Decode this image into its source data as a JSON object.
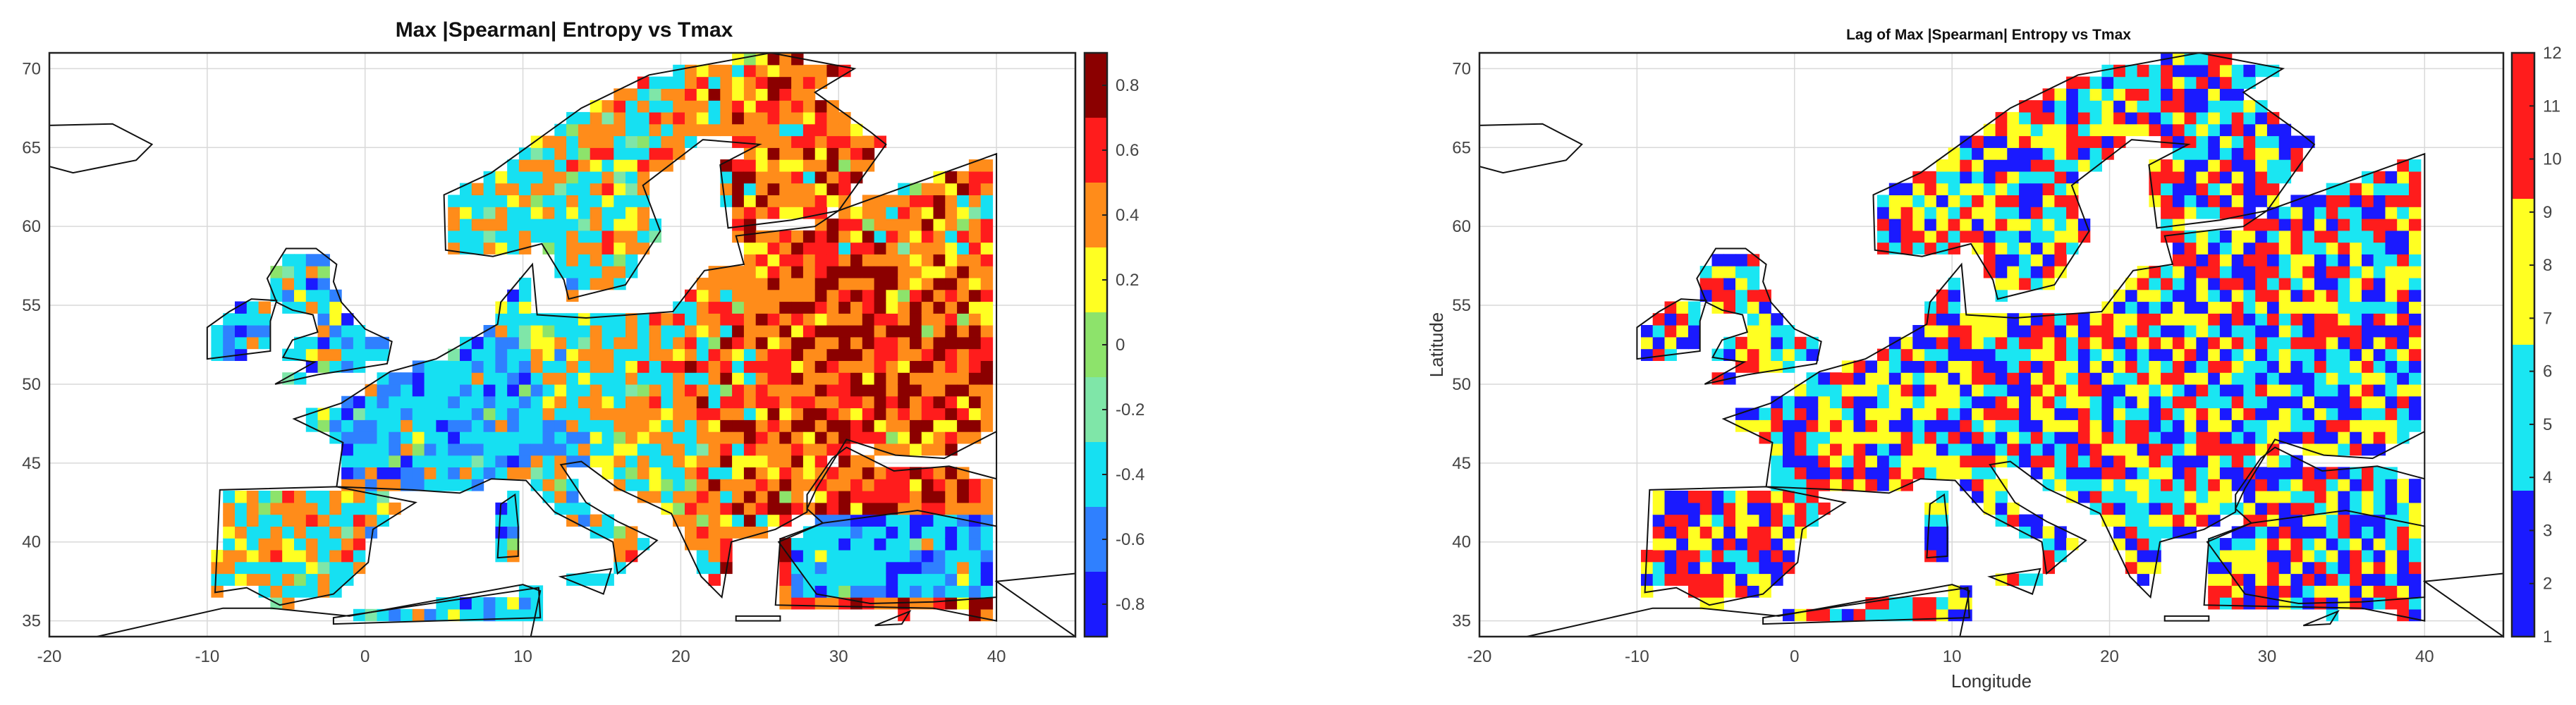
{
  "chart_data": [
    {
      "type": "heatmap",
      "title": "Max |Spearman| Entropy vs Tmax",
      "xlabel": "",
      "ylabel": "",
      "xlim": [
        -20,
        45
      ],
      "ylim": [
        34,
        71
      ],
      "xticks": [
        "-20",
        "-10",
        "0",
        "10",
        "20",
        "30",
        "40"
      ],
      "yticks": [
        "35",
        "40",
        "45",
        "50",
        "55",
        "60",
        "65",
        "70"
      ],
      "grid": true,
      "colorbar": {
        "position": "right",
        "range": [
          -0.9,
          0.9
        ],
        "ticks": [
          "-0.8",
          "-0.6",
          "-0.4",
          "-0.2",
          "0",
          "0.2",
          "0.4",
          "0.6",
          "0.8"
        ],
        "colors": [
          "#1a1aff",
          "#2f80ff",
          "#16e0f2",
          "#7fe6a8",
          "#8de36b",
          "#ffff22",
          "#ff8c1a",
          "#ff1c1c",
          "#8b0000"
        ]
      },
      "dominant_values": {
        "western_europe": [
          -0.4,
          -0.2
        ],
        "eastern_europe": [
          0.4,
          0.6
        ],
        "scandinavia": [
          0.2,
          0.4
        ],
        "iberia": [
          -0.6,
          0.6
        ]
      }
    },
    {
      "type": "heatmap",
      "title": "Lag of Max |Spearman| Entropy vs Tmax",
      "xlabel": "Longitude",
      "ylabel": "Latitude",
      "xlim": [
        -20,
        45
      ],
      "ylim": [
        34,
        71
      ],
      "xticks": [
        "-20",
        "-10",
        "0",
        "10",
        "20",
        "30",
        "40"
      ],
      "yticks": [
        "35",
        "40",
        "45",
        "50",
        "55",
        "60",
        "65",
        "70"
      ],
      "grid": true,
      "colorbar": {
        "position": "right",
        "range": [
          1,
          12
        ],
        "ticks": [
          "1",
          "2",
          "3",
          "4",
          "5",
          "6",
          "7",
          "8",
          "9",
          "10",
          "11",
          "12"
        ],
        "colors": [
          "#1a1aff",
          "#1ae6f2",
          "#ffff22",
          "#ff1c1c"
        ]
      },
      "lag_values": [
        1,
        12
      ]
    }
  ]
}
